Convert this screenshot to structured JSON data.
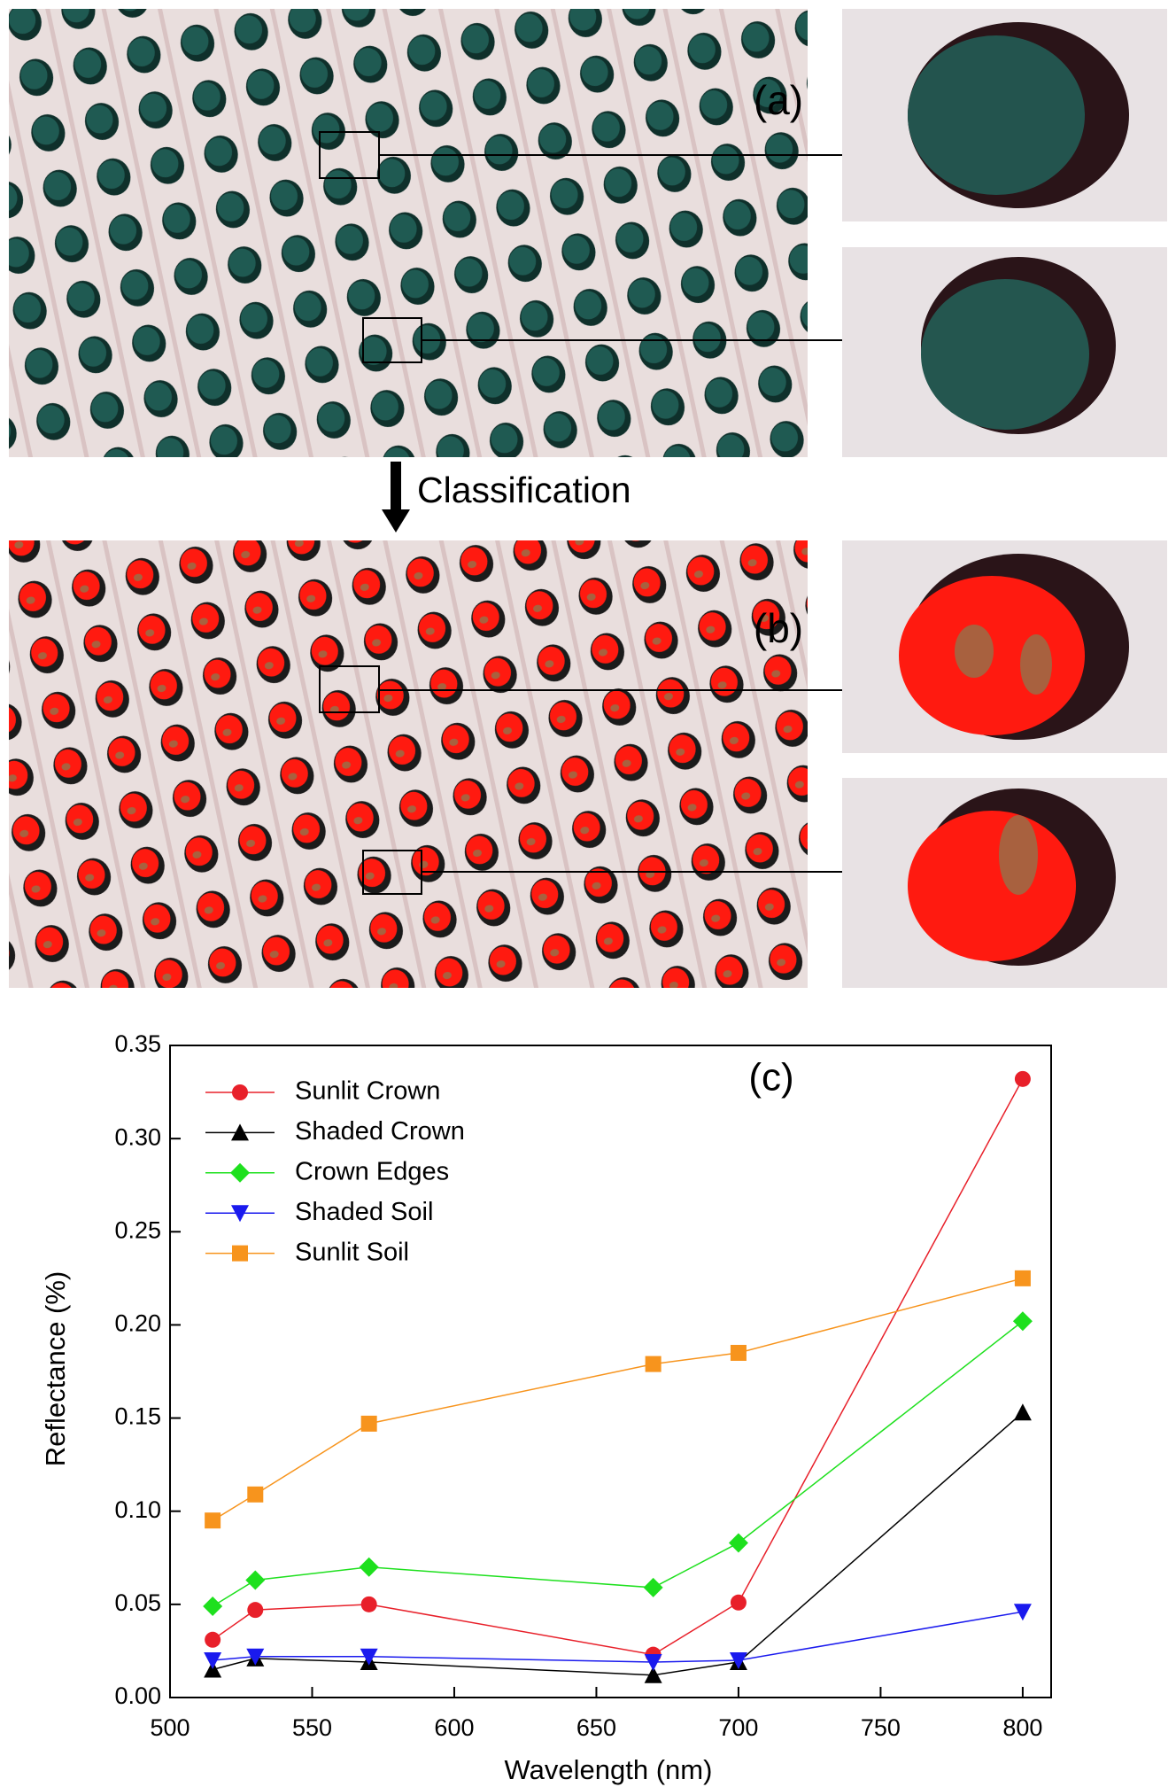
{
  "panels": {
    "a_label": "(a)",
    "b_label": "(b)",
    "arrow_label": "Classification"
  },
  "chart_data": {
    "type": "line",
    "panel_label": "(c)",
    "x_label": "Wavelength (nm)",
    "y_label": "Reflectance (%)",
    "x": [
      515,
      530,
      570,
      670,
      700,
      800
    ],
    "series": [
      {
        "name": "Sunlit Crown",
        "color": "#e8202a",
        "marker": "circle",
        "values": [
          0.031,
          0.047,
          0.05,
          0.023,
          0.051,
          0.332
        ]
      },
      {
        "name": "Shaded Crown",
        "color": "#000000",
        "marker": "triangle-up",
        "values": [
          0.015,
          0.021,
          0.019,
          0.012,
          0.019,
          0.153
        ]
      },
      {
        "name": "Crown Edges",
        "color": "#1ee01e",
        "marker": "diamond",
        "values": [
          0.049,
          0.063,
          0.07,
          0.059,
          0.083,
          0.202
        ]
      },
      {
        "name": "Shaded Soil",
        "color": "#1a1aee",
        "marker": "triangle-down",
        "values": [
          0.02,
          0.022,
          0.022,
          0.019,
          0.02,
          0.046
        ]
      },
      {
        "name": "Sunlit Soil",
        "color": "#f7941d",
        "marker": "square",
        "values": [
          0.095,
          0.109,
          0.147,
          0.179,
          0.185,
          0.225
        ]
      }
    ],
    "xlim": [
      500,
      810
    ],
    "ylim": [
      0,
      0.35
    ],
    "xticks": [
      500,
      550,
      600,
      650,
      700,
      750,
      800
    ],
    "yticks": [
      {
        "value": 0,
        "label": "0.00"
      },
      0.05,
      {
        "value": 0.1,
        "label": "0.10"
      },
      0.15,
      {
        "value": 0.2,
        "label": "0.20"
      },
      0.25,
      {
        "value": 0.3,
        "label": "0.30"
      },
      0.35
    ],
    "legend": "upper-left"
  }
}
